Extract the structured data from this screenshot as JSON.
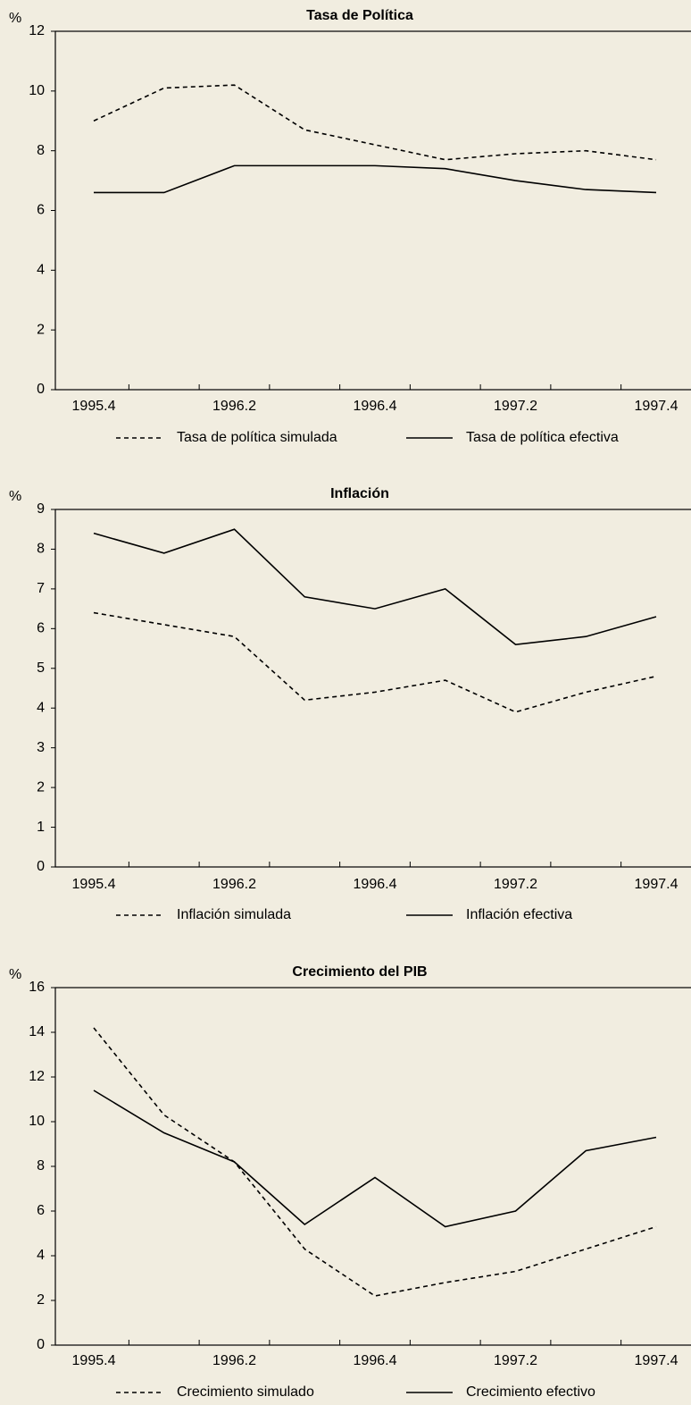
{
  "chart_data": [
    {
      "type": "line",
      "title": "Tasa de Política",
      "y_label": "%",
      "categories": [
        "1995.4",
        null,
        "1996.2",
        null,
        "1996.4",
        null,
        "1997.2",
        null,
        "1997.4"
      ],
      "series": [
        {
          "name": "Tasa de  política simulada",
          "color": "#000000",
          "style": "dashed",
          "values": [
            9.0,
            10.1,
            10.2,
            8.7,
            8.2,
            7.7,
            7.9,
            8.0,
            7.7
          ]
        },
        {
          "name": "Tasa de política efectiva",
          "color": "#000000",
          "style": "solid",
          "values": [
            6.6,
            6.6,
            7.5,
            7.5,
            7.5,
            7.4,
            7.0,
            6.7,
            6.6
          ]
        }
      ],
      "ylim": [
        0,
        12
      ],
      "yticks": [
        0,
        2,
        4,
        6,
        8,
        10,
        12
      ]
    },
    {
      "type": "line",
      "title": "Inflación",
      "y_label": "%",
      "categories": [
        "1995.4",
        null,
        "1996.2",
        null,
        "1996.4",
        null,
        "1997.2",
        null,
        "1997.4"
      ],
      "series": [
        {
          "name": "Inflación simulada",
          "color": "#000000",
          "style": "dashed",
          "values": [
            6.4,
            6.1,
            5.8,
            4.2,
            4.4,
            4.7,
            3.9,
            4.4,
            4.8
          ]
        },
        {
          "name": "Inflación efectiva",
          "color": "#000000",
          "style": "solid",
          "values": [
            8.4,
            7.9,
            8.5,
            6.8,
            6.5,
            7.0,
            5.6,
            5.8,
            6.3
          ]
        }
      ],
      "ylim": [
        0,
        9
      ],
      "yticks": [
        0,
        1,
        2,
        3,
        4,
        5,
        6,
        7,
        8,
        9
      ]
    },
    {
      "type": "line",
      "title": "Crecimiento del PIB",
      "y_label": "%",
      "categories": [
        "1995.4",
        null,
        "1996.2",
        null,
        "1996.4",
        null,
        "1997.2",
        null,
        "1997.4"
      ],
      "series": [
        {
          "name": "Crecimiento simulado",
          "color": "#000000",
          "style": "dashed",
          "values": [
            14.2,
            10.3,
            8.2,
            4.3,
            2.2,
            2.8,
            3.3,
            4.3,
            5.3
          ]
        },
        {
          "name": "Crecimiento efectivo",
          "color": "#000000",
          "style": "solid",
          "values": [
            11.4,
            9.5,
            8.2,
            5.4,
            7.5,
            5.3,
            6.0,
            8.7,
            9.3
          ]
        }
      ],
      "ylim": [
        0,
        16
      ],
      "yticks": [
        0,
        2,
        4,
        6,
        8,
        10,
        12,
        14,
        16
      ]
    }
  ]
}
